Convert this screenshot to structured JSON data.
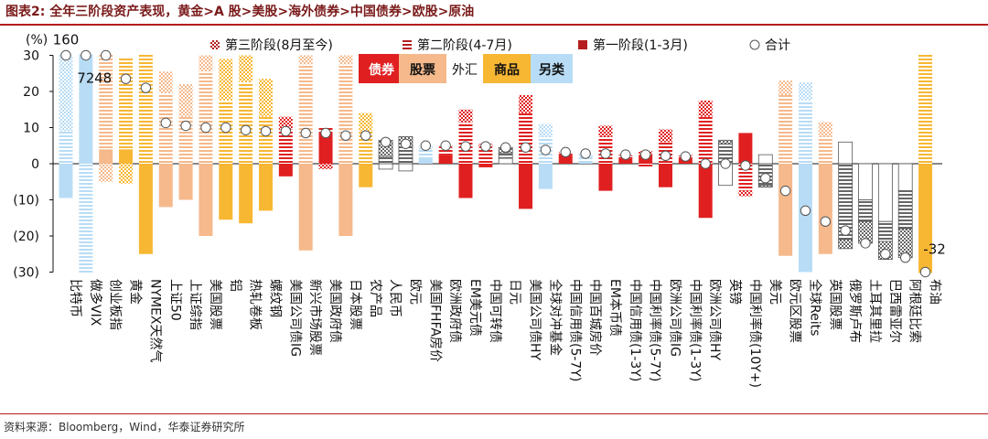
{
  "figure": {
    "title": "图表2:   全年三阶段资产表现，黄金>A 股>美股>海外债券>中国债券>欧股>原油",
    "source": "资料来源：Bloomberg，Wind，华泰证券研究所"
  },
  "colors": {
    "bond": "#e02020",
    "equity": "#f5b98c",
    "fx": "#ffffff",
    "commodity": "#f7b733",
    "alt": "#b8dcf5",
    "dot_fill": "#ffffff",
    "dot_stroke": "#555555"
  },
  "chart_data": {
    "type": "bar",
    "stacked": true,
    "ylabel": "(%)",
    "ylim": [
      -30,
      30
    ],
    "yticks": [
      30,
      20,
      10,
      0,
      -10,
      -20,
      -30
    ],
    "ytick_labels": [
      "30",
      "20",
      "10",
      "0",
      "(10)",
      "(20)",
      "(30)"
    ],
    "grid": false,
    "legend_position": "top",
    "series": [
      {
        "name": "第三阶段(8月至今)",
        "pattern": "check"
      },
      {
        "name": "第二阶段(4-7月)",
        "pattern": "hlines"
      },
      {
        "name": "第一阶段(1-3月)",
        "pattern": "solid"
      },
      {
        "name": "合计",
        "marker": "circle"
      }
    ],
    "class_legend": [
      {
        "key": "bond",
        "label": "债券"
      },
      {
        "key": "equity",
        "label": "股票"
      },
      {
        "key": "fx",
        "label": "外汇"
      },
      {
        "key": "commodity",
        "label": "商品"
      },
      {
        "key": "alt",
        "label": "另类"
      }
    ],
    "categories": [
      {
        "label": "比特币",
        "cls": "alt",
        "s1": -9.5,
        "s2": 9,
        "s3": 150,
        "total": 160,
        "total_label": "160"
      },
      {
        "label": "做多VIX",
        "cls": "alt",
        "s1": 67,
        "s2": -32,
        "s3": 37,
        "total": 72,
        "total_label": "72"
      },
      {
        "label": "创业板指",
        "cls": "equity",
        "s1": 4,
        "s2": 54,
        "s3": -5,
        "total": 48,
        "total_label": "48"
      },
      {
        "label": "黄金",
        "cls": "commodity",
        "s1": 4,
        "s2": 25.5,
        "s3": -5.5,
        "total": 23.5
      },
      {
        "label": "NYMEX天然气",
        "cls": "commodity",
        "s1": -25,
        "s2": 36,
        "s3": 10,
        "total": 21
      },
      {
        "label": "上证50",
        "cls": "equity",
        "s1": -12,
        "s2": 19.5,
        "s3": 6,
        "total": 11.3
      },
      {
        "label": "上证综指",
        "cls": "equity",
        "s1": -10,
        "s2": 13,
        "s3": 9,
        "total": 10.5
      },
      {
        "label": "美国股票",
        "cls": "equity",
        "s1": -20,
        "s2": 25.5,
        "s3": 4.5,
        "total": 10
      },
      {
        "label": "铝",
        "cls": "commodity",
        "s1": -15.5,
        "s2": 17.5,
        "s3": 11.5,
        "total": 10
      },
      {
        "label": "热轧卷板",
        "cls": "commodity",
        "s1": -16.5,
        "s2": 22.5,
        "s3": 7.5,
        "total": 9.3
      },
      {
        "label": "螺纹钢",
        "cls": "commodity",
        "s1": -13,
        "s2": 13,
        "s3": 10.5,
        "total": 9
      },
      {
        "label": "美国公司债IG",
        "cls": "bond",
        "s1": -3.5,
        "s2": 9.5,
        "s3": 3.5,
        "total": 9
      },
      {
        "label": "新兴市场股票",
        "cls": "equity",
        "s1": -24,
        "s2": 27.5,
        "s3": 2.5,
        "total": 8.5
      },
      {
        "label": "美国政府债",
        "cls": "bond",
        "s1": 8.5,
        "s2": 1.5,
        "s3": -1.5,
        "total": 8.5
      },
      {
        "label": "日本股票",
        "cls": "equity",
        "s1": -20,
        "s2": 27.5,
        "s3": 2.5,
        "total": 7.8
      },
      {
        "label": "农产品",
        "cls": "commodity",
        "s1": -6.5,
        "s2": 9,
        "s3": 5,
        "total": 7.8
      },
      {
        "label": "人民币",
        "cls": "fx",
        "s1": -1.5,
        "s2": 2,
        "s3": 4.5,
        "total": 6
      },
      {
        "label": "欧元",
        "cls": "fx",
        "s1": -2,
        "s2": 4.5,
        "s3": 3,
        "total": 5.5
      },
      {
        "label": "美国FHFA房价",
        "cls": "alt",
        "s1": 1.5,
        "s2": 2.5,
        "s3": 1,
        "total": 5
      },
      {
        "label": "欧洲政府债",
        "cls": "bond",
        "s1": 2.5,
        "s2": 2,
        "s3": 0.5,
        "total": 5
      },
      {
        "label": "EM美元债",
        "cls": "bond",
        "s1": -9.5,
        "s2": 11.5,
        "s3": 3.5,
        "total": 4.8
      },
      {
        "label": "中国可转债",
        "cls": "bond",
        "s1": -1,
        "s2": 4.5,
        "s3": 1,
        "total": 4.8
      },
      {
        "label": "日元",
        "cls": "fx",
        "s1": 1.5,
        "s2": 1.5,
        "s3": 1.5,
        "total": 4.5
      },
      {
        "label": "美国公司债HY",
        "cls": "bond",
        "s1": -12.5,
        "s2": 14,
        "s3": 5,
        "total": 4.5
      },
      {
        "label": "全球对冲基金",
        "cls": "alt",
        "s1": -7,
        "s2": 7.5,
        "s3": 3.5,
        "total": 3.8
      },
      {
        "label": "中国信用债(5-7Y)",
        "cls": "bond",
        "s1": 2.5,
        "s2": 0.5,
        "s3": 0.2,
        "total": 3.2
      },
      {
        "label": "中国百城房价",
        "cls": "alt",
        "s1": 0.8,
        "s2": 1,
        "s3": 1,
        "total": 2.8
      },
      {
        "label": "EM本币债",
        "cls": "bond",
        "s1": -7.5,
        "s2": 7.5,
        "s3": 3,
        "total": 2.8
      },
      {
        "label": "中国信用债(1-3Y)",
        "cls": "bond",
        "s1": 1.5,
        "s2": 0.5,
        "s3": 0.5,
        "total": 2.5
      },
      {
        "label": "中国利率债(5-7Y)",
        "cls": "bond",
        "s1": 2.5,
        "s2": -1,
        "s3": 1,
        "total": 2.5
      },
      {
        "label": "欧洲公司债IG",
        "cls": "bond",
        "s1": -6.5,
        "s2": 6,
        "s3": 3.5,
        "total": 2.2
      },
      {
        "label": "中国利率债(1-3Y)",
        "cls": "bond",
        "s1": 1.5,
        "s2": 0.5,
        "s3": 0.5,
        "total": 2
      },
      {
        "label": "欧洲公司债HY",
        "cls": "bond",
        "s1": -15,
        "s2": 13,
        "s3": 4.5,
        "total": 0
      },
      {
        "label": "英镑",
        "cls": "fx",
        "s1": -6,
        "s2": 5.5,
        "s3": 1,
        "total": 0
      },
      {
        "label": "中国利率债(10Y+)",
        "cls": "bond",
        "s1": 8.5,
        "s2": -7.5,
        "s3": -1.5,
        "total": -0.5
      },
      {
        "label": "美元",
        "cls": "fx",
        "s1": 2.5,
        "s2": -6,
        "s3": -0.5,
        "total": -4
      },
      {
        "label": "欧元区股票",
        "cls": "equity",
        "s1": -25.5,
        "s2": 19,
        "s3": 4,
        "total": -7.5
      },
      {
        "label": "全球Reits",
        "cls": "alt",
        "s1": -30,
        "s2": 17.5,
        "s3": 5,
        "total": -13
      },
      {
        "label": "英国股票",
        "cls": "equity",
        "s1": -25,
        "s2": 7.5,
        "s3": 4,
        "total": -16
      },
      {
        "label": "俄罗斯卢布",
        "cls": "fx",
        "s1": 6,
        "s2": -21,
        "s3": -2.5,
        "total": -18.5
      },
      {
        "label": "土耳其里拉",
        "cls": "fx",
        "s1": -10,
        "s2": -6,
        "s3": -6,
        "total": -22
      },
      {
        "label": "巴西雷亚尔",
        "cls": "fx",
        "s1": -16,
        "s2": -5.5,
        "s3": -5,
        "total": -25
      },
      {
        "label": "阿根廷比索",
        "cls": "fx",
        "s1": -7.5,
        "s2": -10.5,
        "s3": -8,
        "total": -26
      },
      {
        "label": "布油",
        "cls": "commodity",
        "s1": -66,
        "s2": 110,
        "s3": -10,
        "total": -32,
        "total_label": "-32"
      }
    ]
  }
}
